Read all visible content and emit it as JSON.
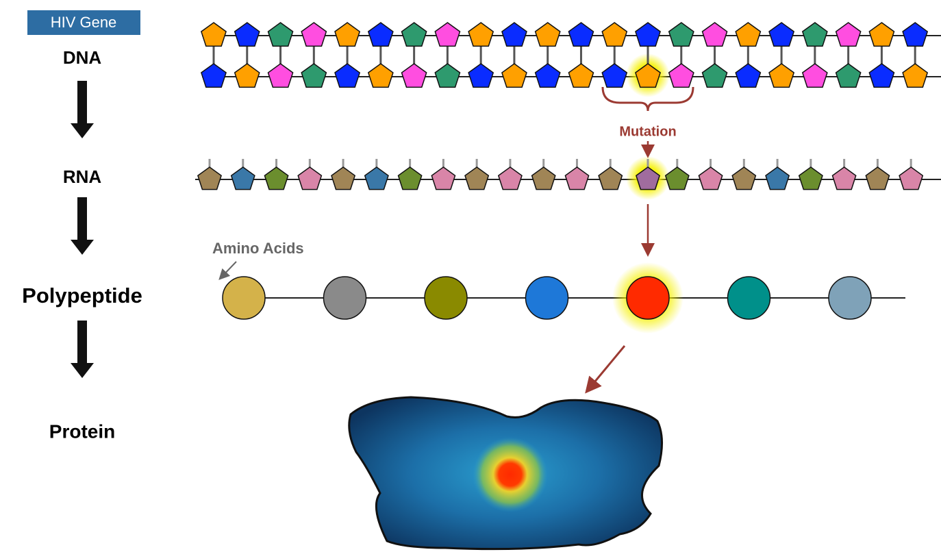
{
  "header": {
    "title": "HIV Gene"
  },
  "stages": [
    "DNA",
    "RNA",
    "Polypeptide",
    "Protein"
  ],
  "annotations": {
    "mutation": "Mutation",
    "amino_acids": "Amino Acids"
  }
}
